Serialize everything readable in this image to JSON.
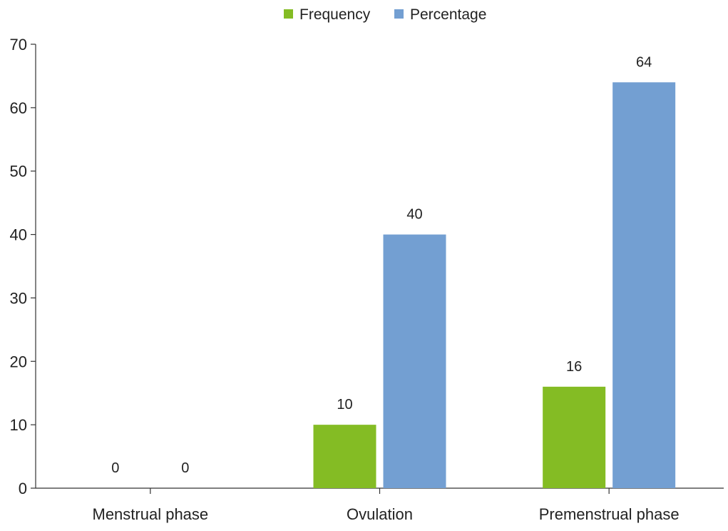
{
  "chart_data": {
    "type": "bar",
    "categories": [
      "Menstrual phase",
      "Ovulation",
      "Premenstrual phase"
    ],
    "series": [
      {
        "name": "Frequency",
        "values": [
          0,
          10,
          16
        ],
        "color": "#84bc24"
      },
      {
        "name": "Percentage",
        "values": [
          0,
          40,
          64
        ],
        "color": "#739fd2"
      }
    ],
    "data_labels": [
      [
        "0",
        "10",
        "16"
      ],
      [
        "0",
        "40",
        "64"
      ]
    ],
    "ylim": [
      0,
      70
    ],
    "yticks": [
      0,
      10,
      20,
      30,
      40,
      50,
      60,
      70
    ],
    "xlabel": "",
    "ylabel": "",
    "title": "",
    "grid": false,
    "legend": "top-center"
  }
}
